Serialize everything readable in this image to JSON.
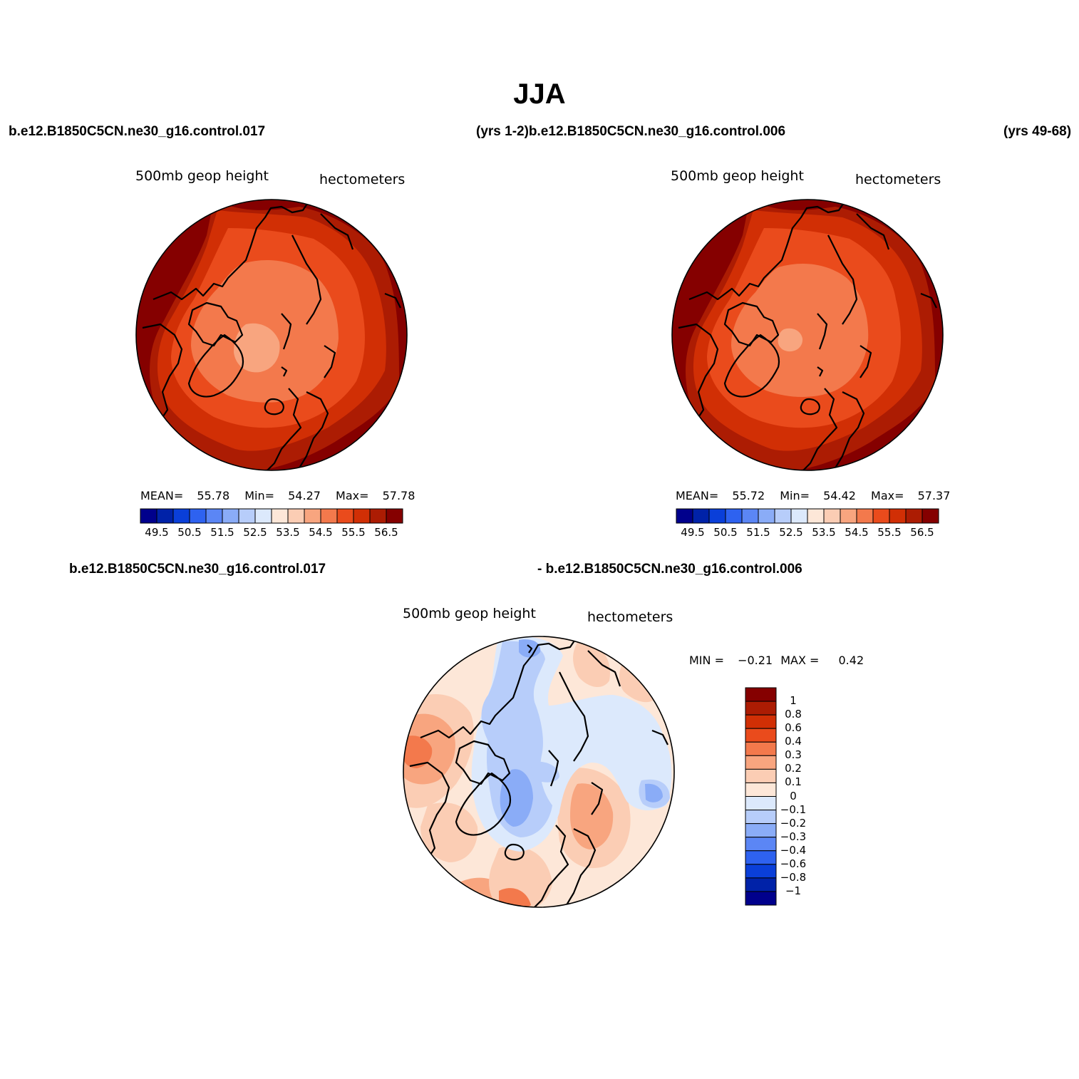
{
  "title": "JJA",
  "headers": {
    "top_left_case": "b.e12.B1850C5CN.ne30_g16.control.017",
    "top_mid": "(yrs 1-2)b.e12.B1850C5CN.ne30_g16.control.006",
    "top_right": "(yrs 49-68)",
    "bottom_left_case": "b.e12.B1850C5CN.ne30_g16.control.017",
    "bottom_right_case": "- b.e12.B1850C5CN.ne30_g16.control.006"
  },
  "panel_left": {
    "variable": "500mb geop height",
    "units": "hectometers",
    "mean_label": "MEAN=",
    "mean": "55.78",
    "min_label": "Min=",
    "min": "54.27",
    "max_label": "Max=",
    "max": "57.78"
  },
  "panel_right": {
    "variable": "500mb geop height",
    "units": "hectometers",
    "mean_label": "MEAN=",
    "mean": "55.72",
    "min_label": "Min=",
    "min": "54.42",
    "max_label": "Max=",
    "max": "57.37"
  },
  "panel_diff": {
    "variable": "500mb geop height",
    "units": "hectometers",
    "min_label": "MIN =",
    "min": "−0.21",
    "max_label": "MAX =",
    "max": "0.42"
  },
  "colorbar_field": {
    "colors": [
      "#00008c",
      "#0022a8",
      "#0a3fd9",
      "#2e62f0",
      "#5b86f5",
      "#8aacf7",
      "#b7cdfa",
      "#dce9fc",
      "#fde7d8",
      "#fbcdb4",
      "#f8a57f",
      "#f3794c",
      "#ea4b1c",
      "#d12f05",
      "#ac1c03",
      "#850000"
    ],
    "labels": [
      "49.5",
      "50.5",
      "51.5",
      "52.5",
      "53.5",
      "54.5",
      "55.5",
      "56.5"
    ]
  },
  "colorbar_diff": {
    "colors": [
      "#850000",
      "#ac1c03",
      "#d12f05",
      "#ea4b1c",
      "#f3794c",
      "#f8a57f",
      "#fbcdb4",
      "#fde7d8",
      "#dce9fc",
      "#b7cdfa",
      "#8aacf7",
      "#5b86f5",
      "#2e62f0",
      "#0a3fd9",
      "#0022a8",
      "#00008c"
    ],
    "labels": [
      "1",
      "0.8",
      "0.6",
      "0.4",
      "0.3",
      "0.2",
      "0.1",
      "0",
      "−0.1",
      "−0.2",
      "−0.3",
      "−0.4",
      "−0.6",
      "−0.8",
      "−1"
    ]
  }
}
